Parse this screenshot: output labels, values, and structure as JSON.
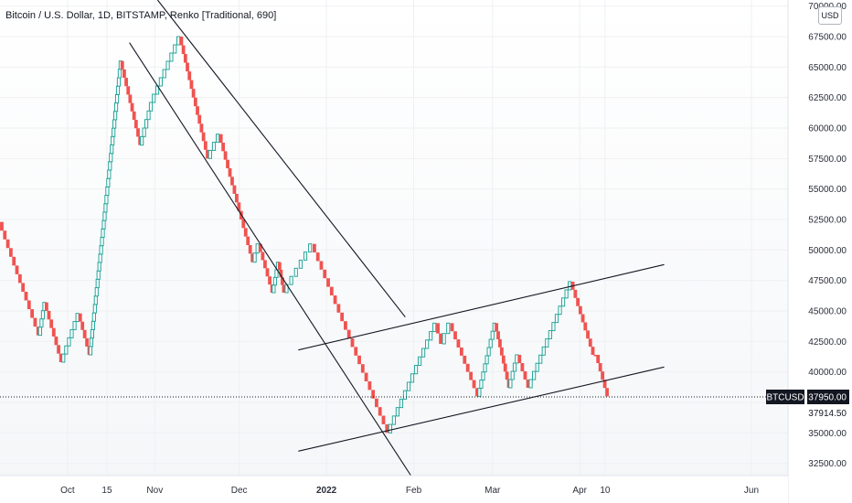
{
  "header": {
    "title": "Bitcoin / U.S. Dollar, 1D, BITSTAMP, Renko [Traditional, 690]"
  },
  "currency_button": "USD",
  "price_tags": {
    "symbol": "BTCUSD",
    "last": "37950.00",
    "secondary": "37914.50"
  },
  "colors": {
    "up": "#26a69a",
    "down": "#ef5350",
    "trendline": "#131722",
    "grid": "#eef0f3",
    "tag_bg": "#131722"
  },
  "chart_data": {
    "type": "renko",
    "box_size": 690,
    "title": "Bitcoin / U.S. Dollar, 1D, BITSTAMP, Renko [Traditional, 690]",
    "xlabel": "",
    "ylabel": "",
    "ylim": [
      31500,
      70500
    ],
    "grid": true,
    "y_ticks": [
      {
        "value": 32500,
        "label": "32500.00"
      },
      {
        "value": 35000,
        "label": "35000.00"
      },
      {
        "value": 37500,
        "label": ""
      },
      {
        "value": 40000,
        "label": "40000.00"
      },
      {
        "value": 42500,
        "label": "42500.00"
      },
      {
        "value": 45000,
        "label": "45000.00"
      },
      {
        "value": 47500,
        "label": "47500.00"
      },
      {
        "value": 50000,
        "label": "50000.00"
      },
      {
        "value": 52500,
        "label": "52500.00"
      },
      {
        "value": 55000,
        "label": "55000.00"
      },
      {
        "value": 57500,
        "label": "57500.00"
      },
      {
        "value": 60000,
        "label": "60000.00"
      },
      {
        "value": 62500,
        "label": "62500.00"
      },
      {
        "value": 65000,
        "label": "65000.00"
      },
      {
        "value": 67500,
        "label": "67500.00"
      },
      {
        "value": 70000,
        "label": "70000.00"
      }
    ],
    "x_ticks": [
      {
        "label": "Oct",
        "date": "2021-10-01"
      },
      {
        "label": "15",
        "date": "2021-10-15"
      },
      {
        "label": "Nov",
        "date": "2021-11-01"
      },
      {
        "label": "Dec",
        "date": "2021-12-01"
      },
      {
        "label": "2022",
        "date": "2022-01-01"
      },
      {
        "label": "Feb",
        "date": "2022-02-01"
      },
      {
        "label": "Mar",
        "date": "2022-03-01"
      },
      {
        "label": "Apr",
        "date": "2022-04-01"
      },
      {
        "label": "10",
        "date": "2022-04-10"
      },
      {
        "label": "Jun",
        "date": "2022-06-01"
      }
    ],
    "x_range": [
      "2021-09-07",
      "2022-06-14"
    ],
    "last_price": 37950,
    "renko_pivots": [
      {
        "date": "2021-09-07",
        "price": 52300
      },
      {
        "date": "2021-09-21",
        "price": 43000
      },
      {
        "date": "2021-09-23",
        "price": 45700
      },
      {
        "date": "2021-09-29",
        "price": 40800
      },
      {
        "date": "2021-10-05",
        "price": 44800
      },
      {
        "date": "2021-10-09",
        "price": 41400
      },
      {
        "date": "2021-10-20",
        "price": 65500
      },
      {
        "date": "2021-10-27",
        "price": 58600
      },
      {
        "date": "2021-10-31",
        "price": 62100
      },
      {
        "date": "2021-11-10",
        "price": 67500
      },
      {
        "date": "2021-11-20",
        "price": 57500
      },
      {
        "date": "2021-11-24",
        "price": 59500
      },
      {
        "date": "2021-12-06",
        "price": 49000
      },
      {
        "date": "2021-12-08",
        "price": 50500
      },
      {
        "date": "2021-12-13",
        "price": 46500
      },
      {
        "date": "2021-12-15",
        "price": 49000
      },
      {
        "date": "2021-12-17",
        "price": 46500
      },
      {
        "date": "2021-12-27",
        "price": 50500
      },
      {
        "date": "2022-01-23",
        "price": 35000
      },
      {
        "date": "2022-02-09",
        "price": 44000
      },
      {
        "date": "2022-02-11",
        "price": 42300
      },
      {
        "date": "2022-02-14",
        "price": 44000
      },
      {
        "date": "2022-02-24",
        "price": 38000
      },
      {
        "date": "2022-03-02",
        "price": 44000
      },
      {
        "date": "2022-03-07",
        "price": 38700
      },
      {
        "date": "2022-03-10",
        "price": 41400
      },
      {
        "date": "2022-03-14",
        "price": 38700
      },
      {
        "date": "2022-03-29",
        "price": 47400
      },
      {
        "date": "2022-04-06",
        "price": 41400
      },
      {
        "date": "2022-04-07",
        "price": 41400
      },
      {
        "date": "2022-04-11",
        "price": 38000
      }
    ],
    "trendlines": [
      {
        "start": {
          "date": "2021-11-02",
          "price": 70500
        },
        "end": {
          "date": "2022-01-29",
          "price": 44500
        }
      },
      {
        "start": {
          "date": "2021-10-23",
          "price": 67000
        },
        "end": {
          "date": "2022-01-31",
          "price": 31500
        }
      },
      {
        "start": {
          "date": "2021-12-22",
          "price": 41800
        },
        "end": {
          "date": "2022-05-01",
          "price": 48800
        }
      },
      {
        "start": {
          "date": "2021-12-22",
          "price": 33500
        },
        "end": {
          "date": "2022-05-01",
          "price": 40400
        }
      }
    ]
  }
}
